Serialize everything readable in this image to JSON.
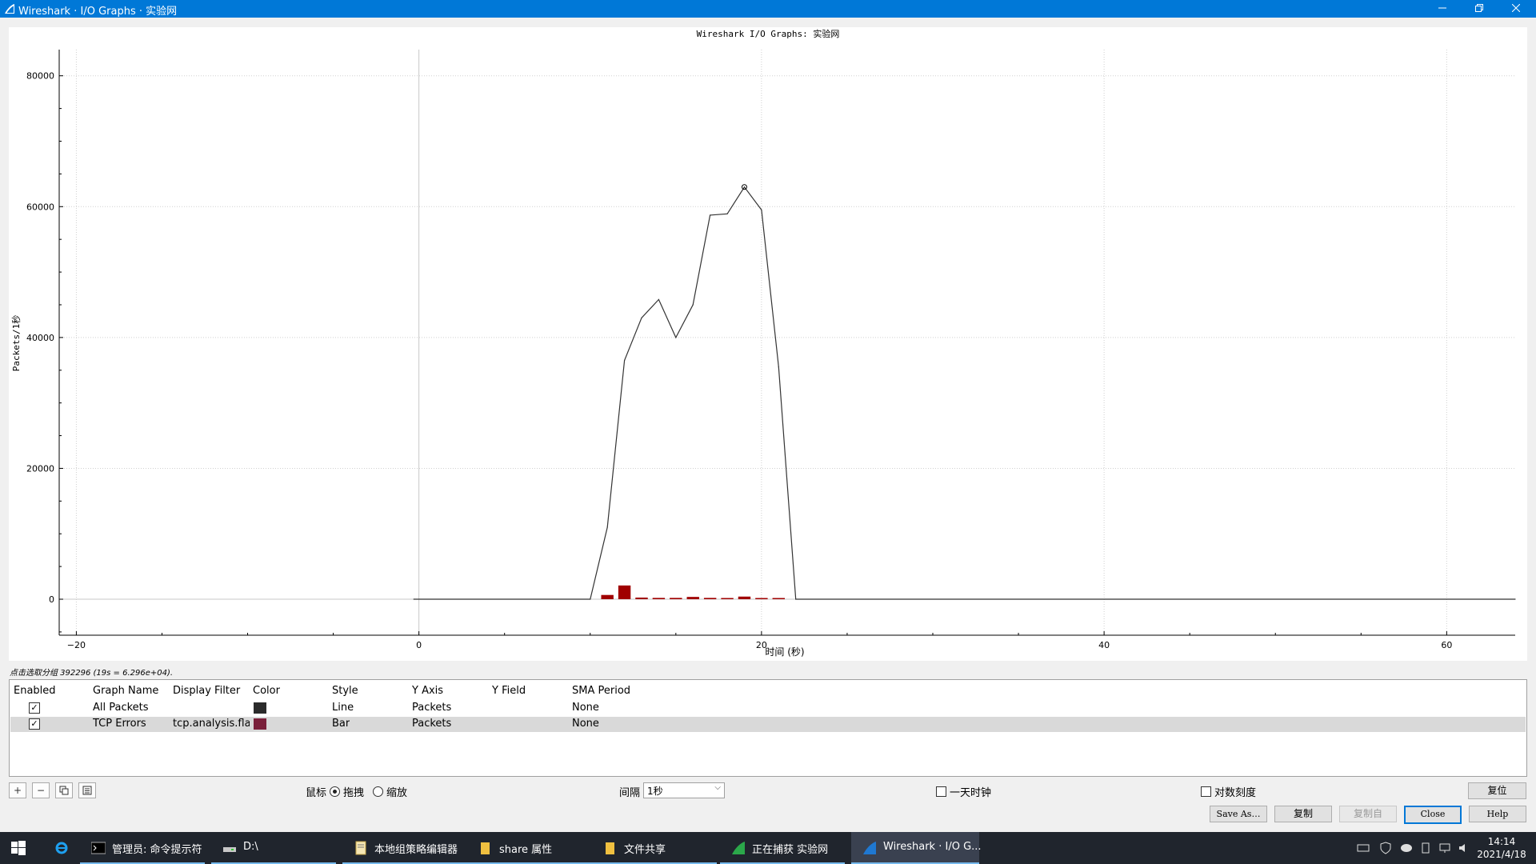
{
  "window": {
    "title": "Wireshark · I/O Graphs · 实验网",
    "minimize_icon": "minimize-icon",
    "restore_icon": "restore-icon",
    "close_icon": "close-icon"
  },
  "chart_data": {
    "type": "line",
    "title": "Wireshark I/O Graphs: 实验网",
    "xlabel": "时间 (秒)",
    "ylabel": "Packets/1秒",
    "xlim": [
      -21,
      64
    ],
    "ylim": [
      -5500,
      84000
    ],
    "xticks": [
      -20,
      0,
      20,
      40,
      60
    ],
    "yticks": [
      0,
      20000,
      40000,
      60000,
      80000
    ],
    "grid": true,
    "series": [
      {
        "name": "All Packets",
        "style": "line",
        "color": "#333333",
        "x": [
          -0.3,
          10,
          11,
          12,
          13,
          14,
          15,
          16,
          17,
          18,
          19,
          20,
          21,
          22,
          64
        ],
        "y": [
          0,
          0,
          11000,
          36500,
          43000,
          45800,
          40000,
          45000,
          58700,
          58900,
          63000,
          59500,
          35500,
          0,
          0
        ]
      },
      {
        "name": "TCP Errors",
        "style": "bar",
        "color": "#a00000",
        "x": [
          11,
          12,
          13,
          14,
          15,
          16,
          17,
          18,
          19,
          20,
          21
        ],
        "y": [
          650,
          2100,
          250,
          200,
          200,
          350,
          200,
          50,
          400,
          50,
          50
        ]
      }
    ],
    "marker": {
      "x": 19,
      "y": 63000
    }
  },
  "status": "点击选取分组 392296 (19s = 6.296e+04).",
  "table": {
    "headers": [
      "Enabled",
      "Graph Name",
      "Display Filter",
      "Color",
      "Style",
      "Y Axis",
      "Y Field",
      "SMA Period"
    ],
    "rows": [
      {
        "name": "All Packets",
        "filter": "",
        "color": "#2b2b2b",
        "style": "Line",
        "y_axis": "Packets",
        "y_field": "",
        "sma": "None",
        "enabled": "✓"
      },
      {
        "name": "TCP Errors",
        "filter": "tcp.analysis.fla...",
        "color": "#7a1f3a",
        "style": "Bar",
        "y_axis": "Packets",
        "y_field": "",
        "sma": "None",
        "enabled": "✓"
      }
    ]
  },
  "controls": {
    "add": "+",
    "remove": "−",
    "copy_graph_icon": "copy-icon",
    "clear_icon": "clear-icon",
    "mouse_label": "鼠标",
    "drag_label": "拖拽",
    "zoom_label": "缩放",
    "interval_label": "间隔",
    "interval_value": "1秒",
    "time_of_day": "一天时钟",
    "log_scale": "对数刻度",
    "reset": "复位"
  },
  "buttons": {
    "save_as": "Save As…",
    "copy": "复制",
    "copy_from": "复制自",
    "close": "Close",
    "help": "Help"
  },
  "taskbar": {
    "items": [
      {
        "label": "管理员: 命令提示符"
      },
      {
        "label": "D:\\"
      },
      {
        "label": "本地组策略编辑器"
      },
      {
        "label": "share 属性"
      },
      {
        "label": "文件共享"
      },
      {
        "label": "正在捕获 实验网"
      },
      {
        "label": "Wireshark · I/O G..."
      }
    ],
    "time": "14:14",
    "date": "2021/4/18"
  }
}
